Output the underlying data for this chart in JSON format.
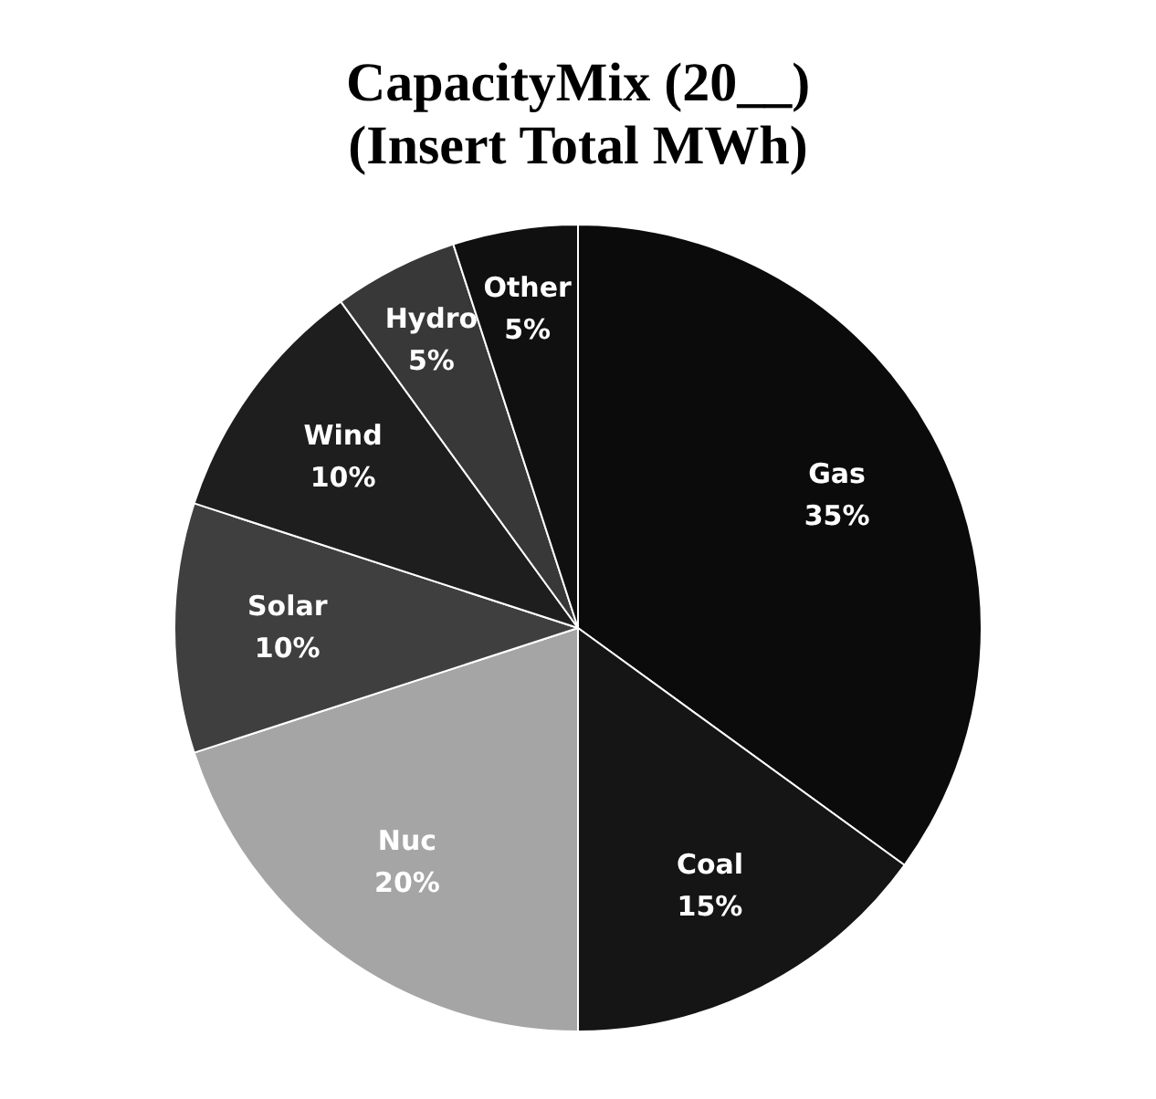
{
  "chart_data": {
    "type": "pie",
    "title": "CapacityMix (20__)\n(Insert Total MWh)",
    "categories": [
      "Gas",
      "Coal",
      "Nuc",
      "Solar",
      "Wind",
      "Hydro",
      "Other"
    ],
    "values": [
      35,
      15,
      20,
      10,
      10,
      5,
      5
    ],
    "colors": [
      "#0b0b0b",
      "#151515",
      "#a5a5a5",
      "#3f3f3f",
      "#1e1e1e",
      "#383838",
      "#101010"
    ],
    "value_labels": [
      "35%",
      "15%",
      "20%",
      "10%",
      "10%",
      "5%",
      "5%"
    ]
  }
}
